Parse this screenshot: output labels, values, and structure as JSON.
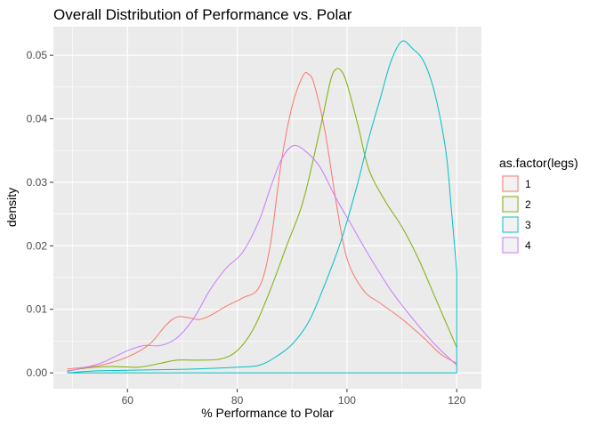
{
  "chart_data": {
    "type": "line",
    "title": "Overall Distribution of Performance vs. Polar",
    "xlabel": "% Performance to Polar",
    "ylabel": "density",
    "xlim": [
      46.5,
      124.5
    ],
    "ylim": [
      -0.0025,
      0.0545
    ],
    "x_ticks": [
      60,
      80,
      100,
      120
    ],
    "x_tick_labels": [
      "60",
      "80",
      "100",
      "120"
    ],
    "y_ticks": [
      0,
      0.01,
      0.02,
      0.03,
      0.04,
      0.05
    ],
    "y_tick_labels": [
      "0.00",
      "0.01",
      "0.02",
      "0.03",
      "0.04",
      "0.05"
    ],
    "grid": true,
    "legend": {
      "title": "as.factor(legs)",
      "position": "right"
    },
    "series": [
      {
        "name": "1",
        "color": "#F8766D",
        "points": [
          [
            49,
            0.0006
          ],
          [
            55,
            0.0012
          ],
          [
            60,
            0.0025
          ],
          [
            64,
            0.0045
          ],
          [
            67,
            0.0075
          ],
          [
            69,
            0.0088
          ],
          [
            71,
            0.0087
          ],
          [
            73,
            0.0084
          ],
          [
            75,
            0.009
          ],
          [
            78,
            0.0105
          ],
          [
            81,
            0.0118
          ],
          [
            84,
            0.0135
          ],
          [
            86,
            0.02
          ],
          [
            88,
            0.033
          ],
          [
            90,
            0.042
          ],
          [
            92,
            0.0468
          ],
          [
            93,
            0.047
          ],
          [
            94,
            0.0455
          ],
          [
            96,
            0.038
          ],
          [
            98,
            0.027
          ],
          [
            100,
            0.018
          ],
          [
            103,
            0.013
          ],
          [
            106,
            0.011
          ],
          [
            110,
            0.0085
          ],
          [
            114,
            0.0055
          ],
          [
            117,
            0.003
          ],
          [
            120,
            0.0015
          ]
        ]
      },
      {
        "name": "2",
        "color": "#7CAE00",
        "points": [
          [
            49,
            0.0003
          ],
          [
            53,
            0.0008
          ],
          [
            57,
            0.001
          ],
          [
            62,
            0.0009
          ],
          [
            66,
            0.0015
          ],
          [
            69,
            0.002
          ],
          [
            73,
            0.002
          ],
          [
            77,
            0.0022
          ],
          [
            80,
            0.0035
          ],
          [
            83,
            0.007
          ],
          [
            86,
            0.013
          ],
          [
            89,
            0.02
          ],
          [
            92,
            0.027
          ],
          [
            95,
            0.038
          ],
          [
            97,
            0.046
          ],
          [
            98,
            0.0478
          ],
          [
            99,
            0.0475
          ],
          [
            100,
            0.0455
          ],
          [
            102,
            0.039
          ],
          [
            104,
            0.032
          ],
          [
            107,
            0.027
          ],
          [
            110,
            0.023
          ],
          [
            113,
            0.018
          ],
          [
            116,
            0.012
          ],
          [
            118,
            0.008
          ],
          [
            120,
            0.004
          ]
        ]
      },
      {
        "name": "3",
        "color": "#00BFC4",
        "points": [
          [
            49,
            0.0
          ],
          [
            54,
            0.0003
          ],
          [
            60,
            0.0004
          ],
          [
            66,
            0.0005
          ],
          [
            72,
            0.0006
          ],
          [
            80,
            0.0009
          ],
          [
            84,
            0.0012
          ],
          [
            87,
            0.0025
          ],
          [
            90,
            0.0045
          ],
          [
            93,
            0.008
          ],
          [
            96,
            0.014
          ],
          [
            99,
            0.021
          ],
          [
            102,
            0.03
          ],
          [
            104,
            0.037
          ],
          [
            106,
            0.043
          ],
          [
            108,
            0.049
          ],
          [
            110,
            0.0522
          ],
          [
            112,
            0.051
          ],
          [
            114,
            0.049
          ],
          [
            116,
            0.044
          ],
          [
            118,
            0.035
          ],
          [
            119,
            0.026
          ],
          [
            120,
            0.016
          ],
          [
            120,
            0.0
          ],
          [
            49,
            0.0
          ]
        ]
      },
      {
        "name": "4",
        "color": "#C77CFF",
        "points": [
          [
            49,
            0.0002
          ],
          [
            55,
            0.0015
          ],
          [
            60,
            0.0035
          ],
          [
            63,
            0.0043
          ],
          [
            66,
            0.0043
          ],
          [
            69,
            0.0055
          ],
          [
            72,
            0.0085
          ],
          [
            75,
            0.013
          ],
          [
            78,
            0.0165
          ],
          [
            81,
            0.019
          ],
          [
            84,
            0.024
          ],
          [
            86,
            0.029
          ],
          [
            88,
            0.0335
          ],
          [
            90,
            0.0357
          ],
          [
            92,
            0.0352
          ],
          [
            95,
            0.0325
          ],
          [
            98,
            0.0275
          ],
          [
            101,
            0.023
          ],
          [
            104,
            0.0185
          ],
          [
            108,
            0.013
          ],
          [
            112,
            0.0085
          ],
          [
            116,
            0.0045
          ],
          [
            120,
            0.0012
          ]
        ]
      }
    ]
  }
}
